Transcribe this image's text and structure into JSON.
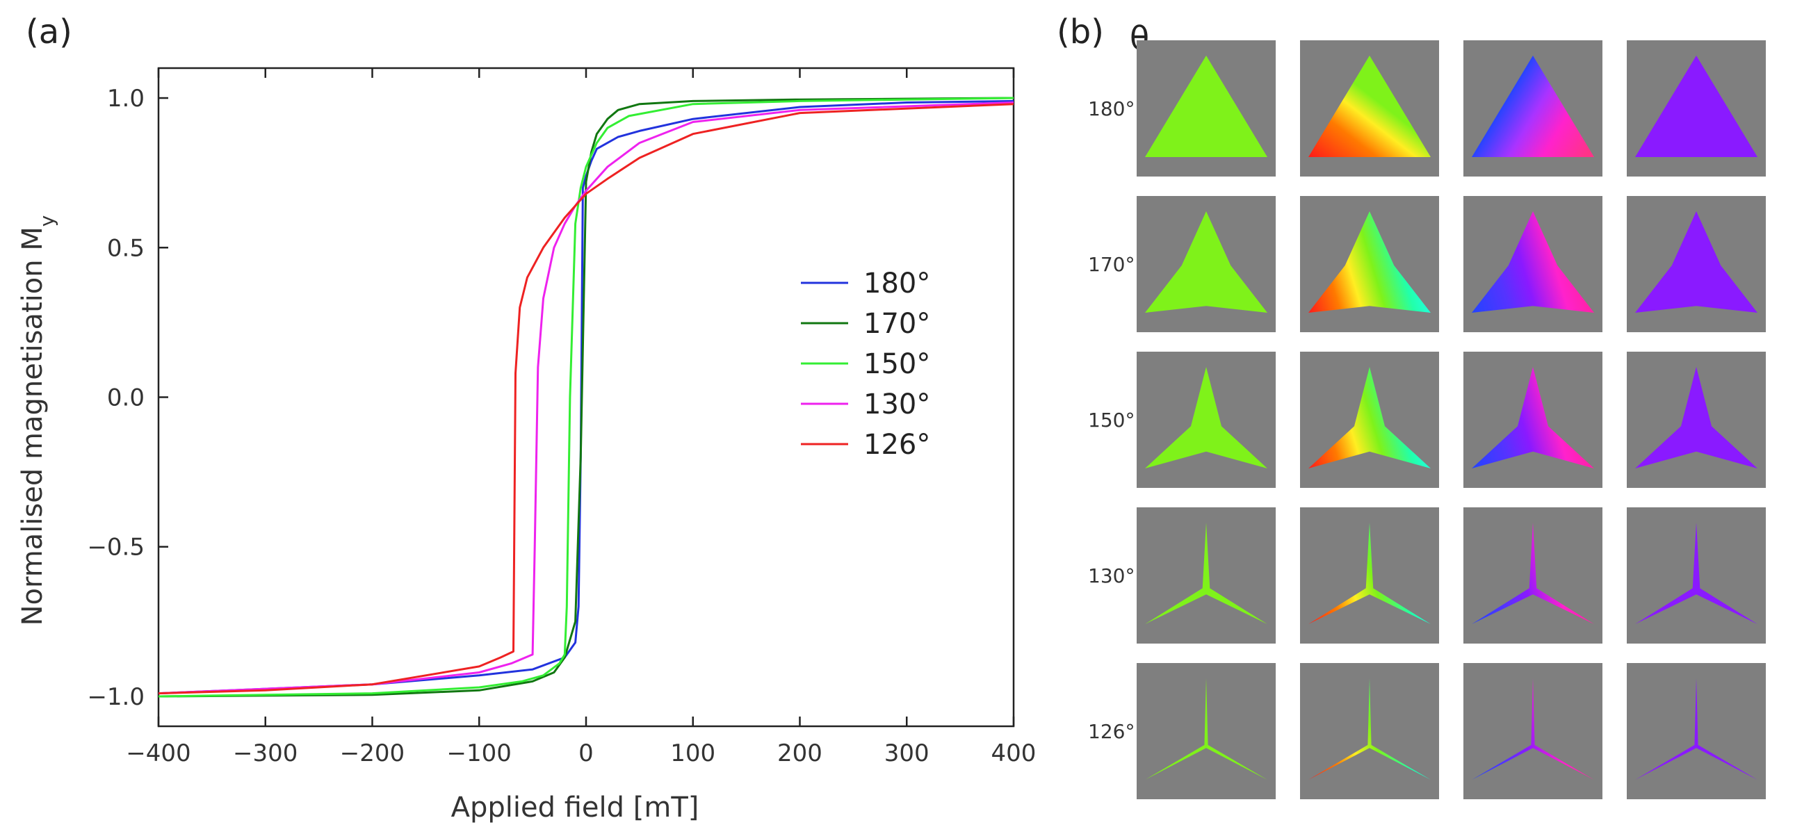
{
  "panel_a_label": "(a)",
  "panel_b_label": "(b)",
  "theta_header": "θ",
  "chart_data": {
    "type": "line",
    "title": "",
    "xlabel": "Applied field [mT]",
    "ylabel": "Normalised magnetisation M",
    "ylabel_subscript": "y",
    "xlim": [
      -400,
      400
    ],
    "ylim": [
      -1.1,
      1.1
    ],
    "xticks": [
      -400,
      -300,
      -200,
      -100,
      0,
      100,
      200,
      300,
      400
    ],
    "xtick_labels": [
      "−400",
      "−300",
      "−200",
      "−100",
      "0",
      "100",
      "200",
      "300",
      "400"
    ],
    "yticks": [
      -1.0,
      -0.5,
      0.0,
      0.5,
      1.0
    ],
    "ytick_labels": [
      "−1.0",
      "−0.5",
      "0.0",
      "0.5",
      "1.0"
    ],
    "grid": false,
    "legend_position": "center-right",
    "series": [
      {
        "name": "180°",
        "color": "#2233dd",
        "x": [
          -400,
          -200,
          -100,
          -50,
          -20,
          -10,
          -7,
          -5,
          -3,
          0,
          5,
          10,
          20,
          30,
          50,
          100,
          200,
          300,
          400
        ],
        "y": [
          -0.99,
          -0.96,
          -0.93,
          -0.91,
          -0.87,
          -0.82,
          -0.7,
          -0.2,
          0.7,
          0.74,
          0.79,
          0.83,
          0.85,
          0.87,
          0.89,
          0.93,
          0.97,
          0.985,
          0.99
        ]
      },
      {
        "name": "170°",
        "color": "#117711",
        "x": [
          -400,
          -200,
          -100,
          -50,
          -30,
          -20,
          -10,
          -5,
          0,
          5,
          10,
          20,
          30,
          50,
          100,
          200,
          400
        ],
        "y": [
          -1.0,
          -0.995,
          -0.98,
          -0.95,
          -0.92,
          -0.87,
          -0.75,
          -0.2,
          0.72,
          0.82,
          0.88,
          0.93,
          0.96,
          0.98,
          0.99,
          0.995,
          1.0
        ]
      },
      {
        "name": "150°",
        "color": "#33ee33",
        "x": [
          -400,
          -200,
          -100,
          -60,
          -40,
          -25,
          -20,
          -18,
          -15,
          -10,
          -5,
          0,
          10,
          20,
          40,
          100,
          200,
          400
        ],
        "y": [
          -1.0,
          -0.99,
          -0.97,
          -0.95,
          -0.93,
          -0.89,
          -0.86,
          -0.7,
          0.0,
          0.58,
          0.7,
          0.77,
          0.85,
          0.9,
          0.94,
          0.98,
          0.99,
          1.0
        ]
      },
      {
        "name": "130°",
        "color": "#ee22ee",
        "x": [
          -400,
          -200,
          -100,
          -70,
          -50,
          -48,
          -45,
          -40,
          -30,
          -20,
          -10,
          0,
          20,
          50,
          100,
          200,
          400
        ],
        "y": [
          -0.99,
          -0.96,
          -0.92,
          -0.89,
          -0.86,
          -0.5,
          0.1,
          0.33,
          0.5,
          0.58,
          0.64,
          0.69,
          0.77,
          0.85,
          0.92,
          0.96,
          0.985
        ]
      },
      {
        "name": "126°",
        "color": "#ee2222",
        "x": [
          -400,
          -300,
          -200,
          -100,
          -80,
          -68,
          -66,
          -62,
          -55,
          -40,
          -20,
          0,
          20,
          50,
          100,
          200,
          400
        ],
        "y": [
          -0.99,
          -0.98,
          -0.96,
          -0.9,
          -0.87,
          -0.85,
          0.08,
          0.3,
          0.4,
          0.5,
          0.6,
          0.68,
          0.73,
          0.8,
          0.88,
          0.95,
          0.98
        ]
      }
    ]
  },
  "grid_b": {
    "row_labels": [
      "180°",
      "170°",
      "150°",
      "130°",
      "126°"
    ],
    "arm_width_fractions": [
      1.0,
      0.8,
      0.5,
      0.12,
      0.06
    ],
    "background_color": "#7f7f7f",
    "colors": {
      "green": "#7ff21a",
      "orange": "#ff7a00",
      "red": "#ff1a1a",
      "yellow": "#ffee22",
      "cyan": "#22ffee",
      "blue": "#2244ff",
      "purple": "#8a1aff",
      "magenta": "#ff22cc"
    }
  }
}
